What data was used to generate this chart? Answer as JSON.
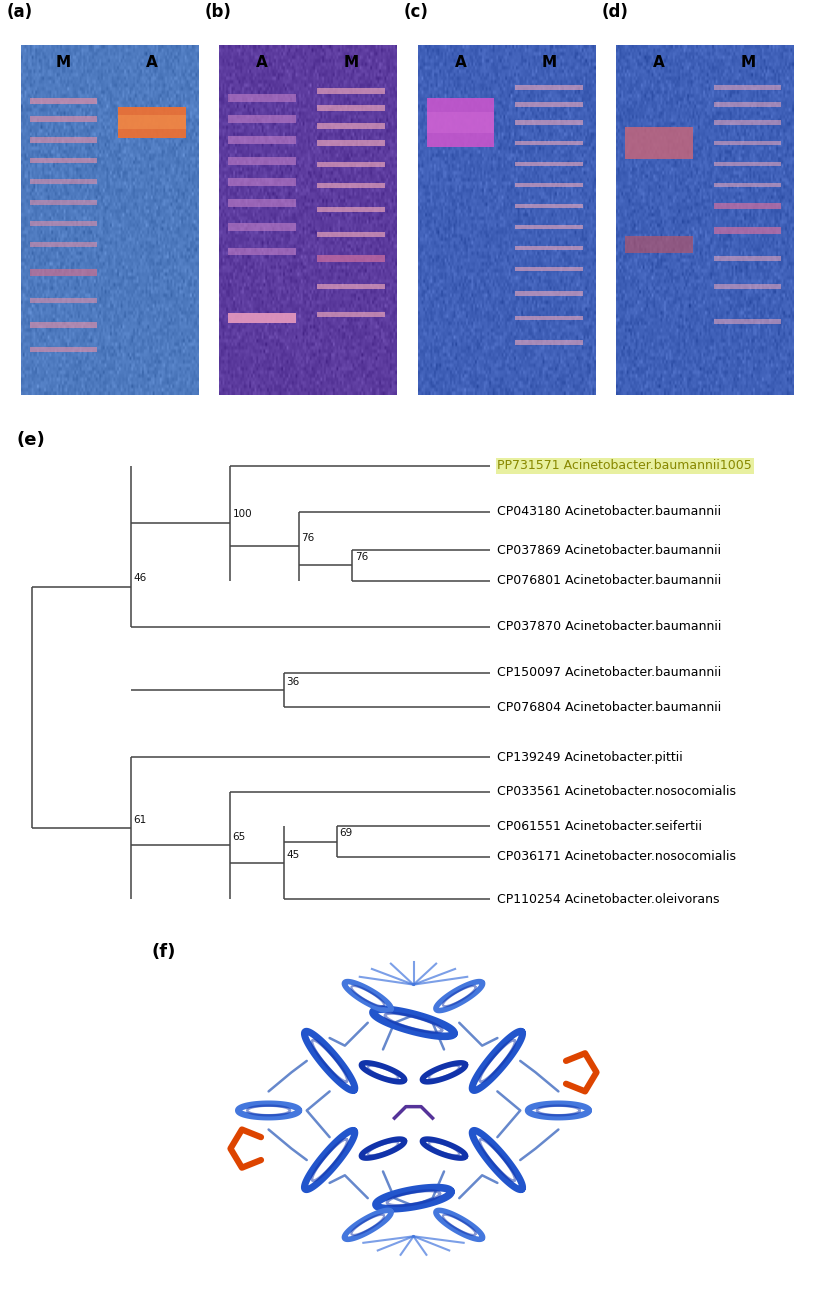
{
  "panel_labels": [
    "(a)",
    "(b)",
    "(c)",
    "(d)",
    "(e)",
    "(f)"
  ],
  "lane_labels": [
    [
      "M",
      "A"
    ],
    [
      "A",
      "M"
    ],
    [
      "A",
      "M"
    ],
    [
      "A",
      "M"
    ]
  ],
  "gel_bg_colors": [
    "#4e7abf",
    "#5c3b9e",
    "#4060b8",
    "#3f60b8"
  ],
  "phylo": {
    "highlight_bg": "#e8f0a0",
    "highlight_color": "#888800",
    "taxa": [
      "PP731571 Acinetobacter.baumannii1005",
      "CP043180 Acinetobacter.baumannii",
      "CP037869 Acinetobacter.baumannii",
      "CP076801 Acinetobacter.baumannii",
      "CP037870 Acinetobacter.baumannii",
      "CP150097 Acinetobacter.baumannii",
      "CP076804 Acinetobacter.baumannii",
      "CP139249 Acinetobacter.pittii",
      "CP033561 Acinetobacter.nosocomialis",
      "CP061551 Acinetobacter.seifertii",
      "CP036171 Acinetobacter.nosocomialis",
      "CP110254 Acinetobacter.oleivorans"
    ]
  }
}
